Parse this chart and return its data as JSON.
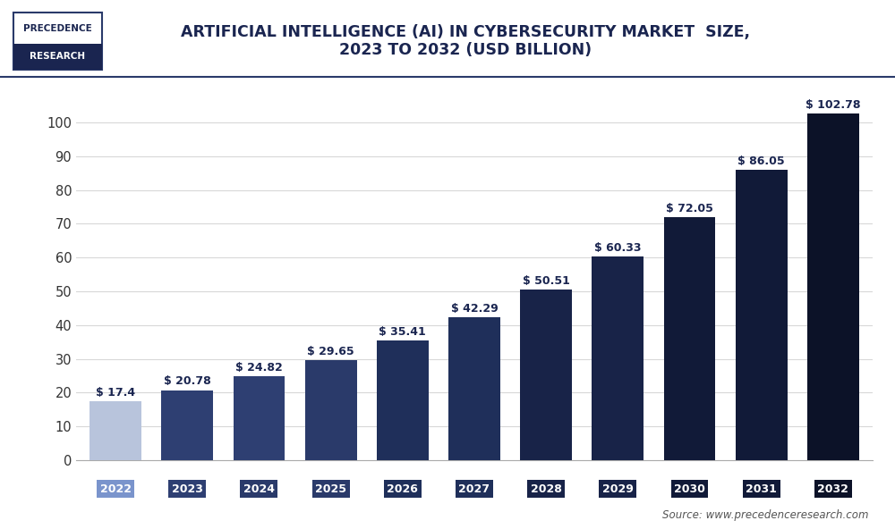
{
  "years": [
    "2022",
    "2023",
    "2024",
    "2025",
    "2026",
    "2027",
    "2028",
    "2029",
    "2030",
    "2031",
    "2032"
  ],
  "values": [
    17.4,
    20.78,
    24.82,
    29.65,
    35.41,
    42.29,
    50.51,
    60.33,
    72.05,
    86.05,
    102.78
  ],
  "labels": [
    "$ 17.4",
    "$ 20.78",
    "$ 24.82",
    "$ 29.65",
    "$ 35.41",
    "$ 42.29",
    "$ 50.51",
    "$ 60.33",
    "$ 72.05",
    "$ 86.05",
    "$ 102.78"
  ],
  "bar_colors": [
    "#b8c4dc",
    "#2e3f72",
    "#2e3f72",
    "#2a3a6a",
    "#1f2f5a",
    "#1f2f5a",
    "#182348",
    "#182348",
    "#111a38",
    "#111a38",
    "#0c1228"
  ],
  "xtick_colors": [
    "#7a94cc",
    "#2e3f72",
    "#2a3a6a",
    "#2a3a6a",
    "#1f2f5a",
    "#1f2f5a",
    "#182348",
    "#182348",
    "#111a38",
    "#111a38",
    "#0c1228"
  ],
  "title_line1": "ARTIFICIAL INTELLIGENCE (AI) IN CYBERSECURITY MARKET  SIZE,",
  "title_line2": "2023 TO 2032 (USD BILLION)",
  "ylim": [
    0,
    112
  ],
  "yticks": [
    0,
    10,
    20,
    30,
    40,
    50,
    60,
    70,
    80,
    90,
    100
  ],
  "background_color": "#ffffff",
  "plot_bg_color": "#ffffff",
  "grid_color": "#d8d8d8",
  "source_text": "Source: www.precedenceresearch.com",
  "title_color": "#1a2550",
  "label_color": "#1a2550",
  "label_fontsize": 9.0,
  "title_fontsize": 12.5,
  "tick_fontsize": 10.5,
  "xtick_fontsize": 9.0
}
